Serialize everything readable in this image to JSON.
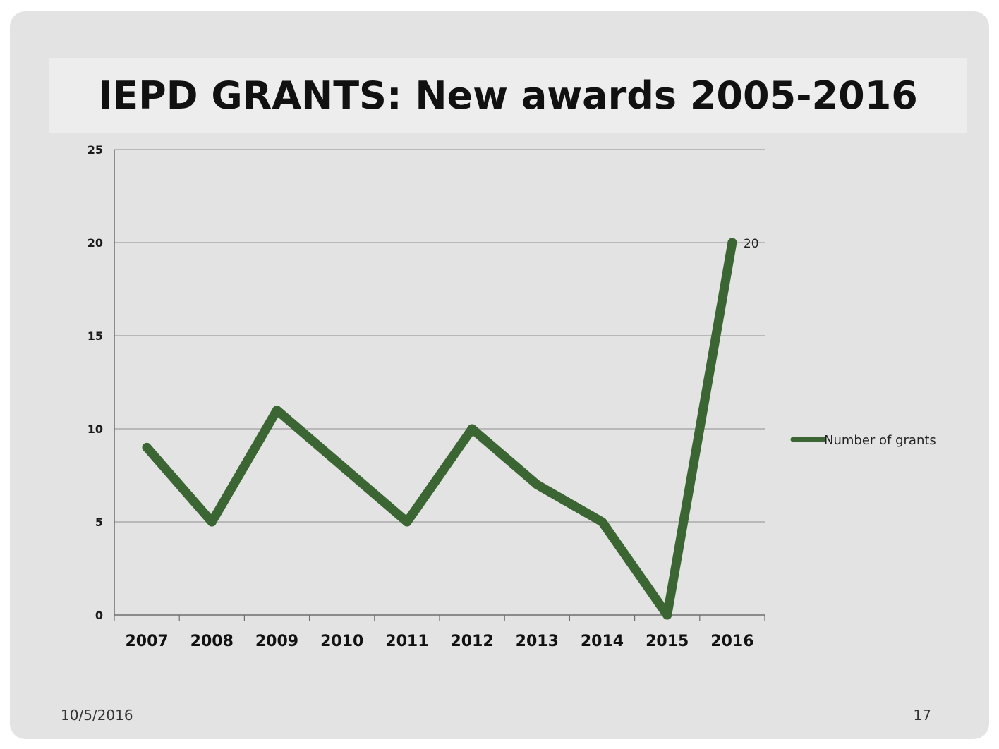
{
  "slide": {
    "title": "IEPD GRANTS: New awards 2005-2016",
    "footer_date": "10/5/2016",
    "page_number": "17"
  },
  "chart_data": {
    "type": "line",
    "title": "",
    "xlabel": "",
    "ylabel": "",
    "categories": [
      "2007",
      "2008",
      "2009",
      "2010",
      "2011",
      "2012",
      "2013",
      "2014",
      "2015",
      "2016"
    ],
    "series": [
      {
        "name": "Number of grants",
        "values": [
          9,
          5,
          11,
          8,
          5,
          10,
          7,
          5,
          0,
          20
        ],
        "color": "#3b6633"
      }
    ],
    "ylim": [
      0,
      25
    ],
    "yticks": [
      0,
      5,
      10,
      15,
      20,
      25
    ],
    "grid": true,
    "legend": "right",
    "data_labels": [
      {
        "category": "2016",
        "text": "20"
      }
    ]
  }
}
